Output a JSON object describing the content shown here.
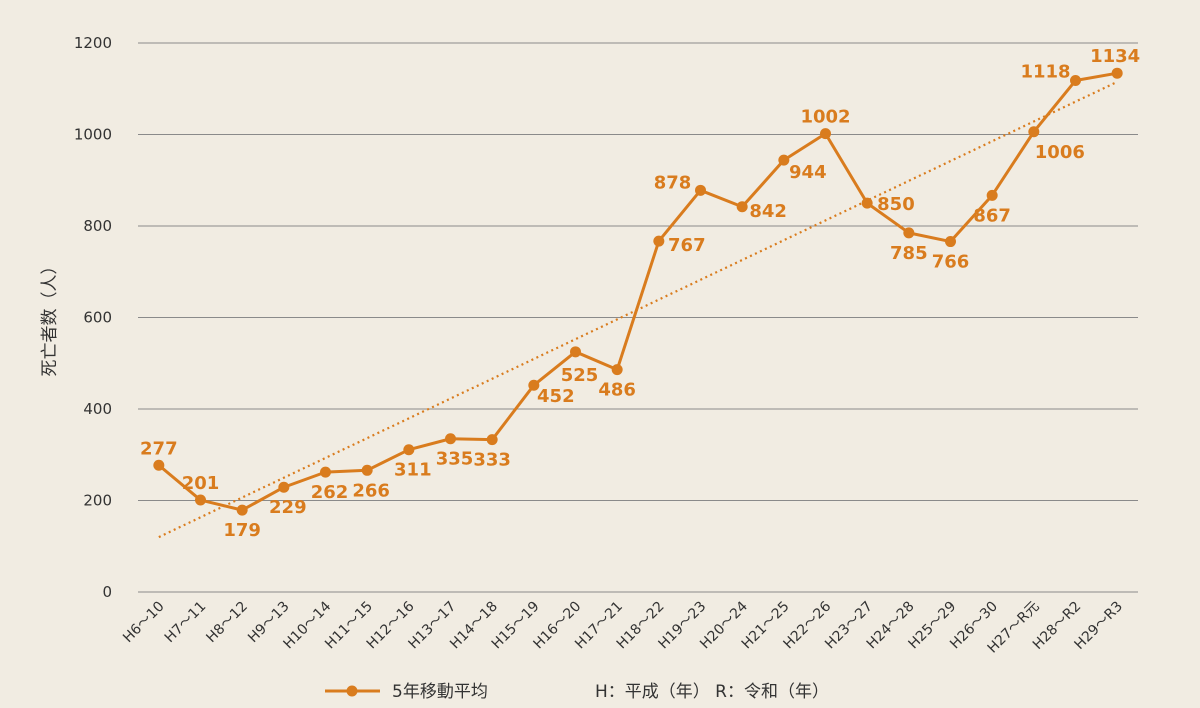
{
  "chart_data": {
    "type": "line",
    "ylabel": "死亡者数（人）",
    "ylim": [
      0,
      1200
    ],
    "yticks": [
      0,
      200,
      400,
      600,
      800,
      1000,
      1200
    ],
    "grid": "horizontal",
    "categories": [
      "H6〜10",
      "H7〜11",
      "H8〜12",
      "H9〜13",
      "H10〜14",
      "H11〜15",
      "H12〜16",
      "H13〜17",
      "H14〜18",
      "H15〜19",
      "H16〜20",
      "H17〜21",
      "H18〜22",
      "H19〜23",
      "H20〜24",
      "H21〜25",
      "H22〜26",
      "H23〜27",
      "H24〜28",
      "H25〜29",
      "H26〜30",
      "H27〜R元",
      "H28〜R2",
      "H29〜R3"
    ],
    "series": [
      {
        "name": "5年移動平均",
        "values": [
          277,
          201,
          179,
          229,
          262,
          266,
          311,
          335,
          333,
          452,
          525,
          486,
          767,
          878,
          842,
          944,
          1002,
          850,
          785,
          766,
          867,
          1006,
          1118,
          1134
        ]
      }
    ],
    "trendline": {
      "style": "dotted",
      "start": 120,
      "end": 1115
    },
    "legend_position": "bottom",
    "note": "H：平成（年） R：令和（年）",
    "colors": {
      "series": "#d97c1e",
      "grid": "#8a8a8a",
      "background": "#f1ece2"
    }
  }
}
